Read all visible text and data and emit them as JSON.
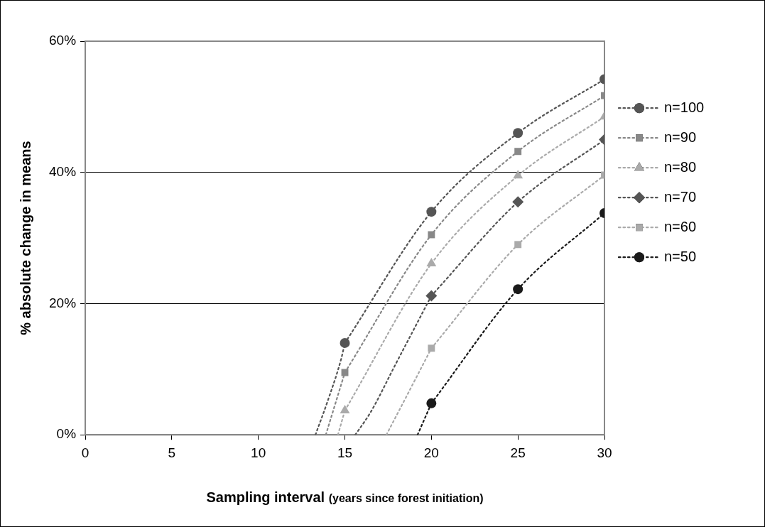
{
  "chart_data": {
    "type": "line",
    "xlabel": "Sampling interval (years since forest initiation)",
    "ylabel": "% absolute change in means",
    "xlim": [
      0,
      30
    ],
    "xticks": [
      0,
      5,
      10,
      15,
      20,
      25,
      30
    ],
    "ylim": [
      0,
      60
    ],
    "yticks": [
      {
        "value": 0,
        "label": "0%"
      },
      {
        "value": 20,
        "label": "20%"
      },
      {
        "value": 40,
        "label": "40%"
      },
      {
        "value": 60,
        "label": "60%"
      }
    ],
    "grid": "y",
    "legend": "right",
    "line_style": "dotted",
    "series": [
      {
        "name": "n=100",
        "color": "#555555",
        "marker": "circle",
        "x": [
          15,
          20,
          25,
          30
        ],
        "values": [
          14,
          34,
          46,
          54.2
        ]
      },
      {
        "name": "n=90",
        "color": "#888888",
        "marker": "square",
        "x": [
          15,
          20,
          25,
          30
        ],
        "values": [
          9.5,
          30.5,
          43.2,
          51.7
        ]
      },
      {
        "name": "n=80",
        "color": "#aaaaaa",
        "marker": "triangle",
        "x": [
          15,
          20,
          25,
          30
        ],
        "values": [
          3.7,
          26.1,
          39.5,
          48.5
        ]
      },
      {
        "name": "n=70",
        "color": "#555555",
        "marker": "diamond",
        "x": [
          20,
          25,
          30
        ],
        "values": [
          21.2,
          35.5,
          45
        ]
      },
      {
        "name": "n=60",
        "color": "#aaaaaa",
        "marker": "square",
        "x": [
          20,
          25,
          30
        ],
        "values": [
          13.2,
          29,
          39.6
        ]
      },
      {
        "name": "n=50",
        "color": "#1a1a1a",
        "marker": "circle",
        "x": [
          20,
          25,
          30
        ],
        "values": [
          4.8,
          22.2,
          33.8
        ]
      },
      {
        "type": "line",
        "color": "#555555",
        "marker": "none",
        "x": [
          13.3,
          14,
          14.8,
          15
        ],
        "values": [
          0,
          5.1,
          11.7,
          14
        ]
      },
      {
        "type": "line",
        "color": "#888888",
        "marker": "none",
        "x": [
          13.9,
          15
        ],
        "values": [
          0,
          9.5
        ]
      },
      {
        "type": "line",
        "color": "#aaaaaa",
        "marker": "none",
        "x": [
          14.6,
          15
        ],
        "values": [
          0,
          3.7
        ]
      },
      {
        "type": "line",
        "color": "#555555",
        "marker": "none",
        "x": [
          15.6,
          16.5,
          17.9,
          20
        ],
        "values": [
          0,
          3.5,
          10.6,
          21.2
        ]
      },
      {
        "type": "line",
        "color": "#aaaaaa",
        "marker": "none",
        "x": [
          17.4,
          19.1,
          20
        ],
        "values": [
          0,
          8.6,
          13.2
        ]
      },
      {
        "type": "line",
        "color": "#1a1a1a",
        "marker": "none",
        "x": [
          19.2,
          20
        ],
        "values": [
          0,
          4.8
        ]
      }
    ]
  }
}
